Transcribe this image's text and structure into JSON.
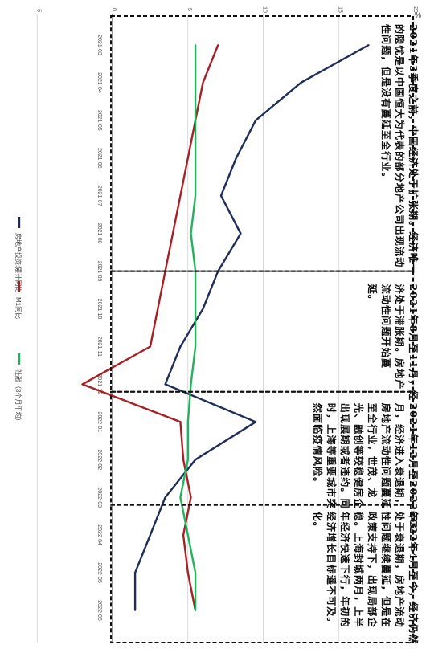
{
  "chart_data": {
    "type": "line",
    "x": [
      "2021-03",
      "2021-04",
      "2021-05",
      "2021-06",
      "2021-07",
      "2021-08",
      "2021-09",
      "2021-10",
      "2021-11",
      "2021-12",
      "2022-01",
      "2022-02",
      "2022-03",
      "2022-04",
      "2022-05",
      "2022-06"
    ],
    "series": [
      {
        "name": "房地产投资:累计同比",
        "color": "#1f2d5a",
        "values": [
          17,
          12.5,
          9.5,
          8.2,
          7.2,
          8.5,
          7,
          6,
          4.5,
          3.5,
          9.5,
          5.5,
          3.5,
          2.5,
          1.5,
          1.5
        ]
      },
      {
        "name": "M1同比",
        "color": "#a81f24",
        "values": [
          7,
          6,
          5.5,
          5,
          4.5,
          4,
          3.5,
          3,
          2.5,
          -2,
          4.5,
          4.7,
          5.2,
          4.7,
          5,
          5.5
        ]
      },
      {
        "name": "社融（3个月平均）",
        "color": "#22b35c",
        "values": [
          5.5,
          5.5,
          5.5,
          5.5,
          5.5,
          5.2,
          5.5,
          5.5,
          5.5,
          5.2,
          5,
          5,
          4.5,
          5,
          5.5,
          5.5
        ]
      }
    ],
    "ylim": [
      -5,
      20
    ],
    "y_ticks": [
      "-5",
      "0",
      "5",
      "10",
      "15",
      "20"
    ],
    "y_unit": "%",
    "grid": true,
    "legend_position": "bottom",
    "legend": [
      {
        "label": "房地产投资:累计同比",
        "color": "#1f2d5a"
      },
      {
        "label": "M1同比",
        "color": "#a81f24"
      },
      {
        "label": "社融（3个月平均）",
        "color": "#22b35c"
      }
    ],
    "periods": [
      {
        "lines": [
          "2021年3季度之前，中国经济处于扩张期。经济唯一",
          "的隐忧是以中国恒大为代表的部分地产公司出现流动",
          "性问题，但是没有蔓延至全行业。"
        ]
      },
      {
        "lines": [
          "2021年8月至11月，经",
          "济处于滞胀期。房地产",
          "流动性问题开始蔓",
          "延。"
        ]
      },
      {
        "lines": [
          "2021年12月至2022年3",
          "月，经济进入衰退期，",
          "房地产流动性问题蔓延",
          "至全行业，世茂、龙",
          "光、融创等较稳健房企",
          "出现展期或者违约。同",
          "时，上海等重要城市突",
          "然面临疫情风险。"
        ]
      },
      {
        "lines": [
          "2022年4月至今，经济仍然",
          "处于衰退期，房地产流动",
          "性问题继续蔓延，但是在",
          "政策支持下，出现局部企",
          "稳。上海封城两月，上半",
          "年经济快速下行，年初的",
          "经济增长目标遥不可及。",
          "化。"
        ]
      }
    ]
  }
}
